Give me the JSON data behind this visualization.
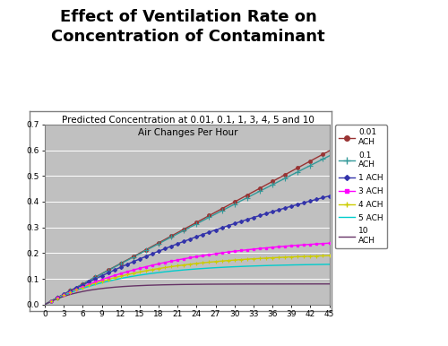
{
  "title": "Effect of Ventilation Rate on\nConcentration of Contaminant",
  "subtitle": "Predicted Concentration at 0.01, 0.1, 1, 3, 4, 5 and 10\nAir Changes Per Hour",
  "title_fontsize": 13,
  "subtitle_fontsize": 7.5,
  "ach_values": [
    0.01,
    0.1,
    1,
    3,
    4,
    5,
    10
  ],
  "ach_labels": [
    "0.01\nACH",
    "0.1\nACH",
    "1 ACH",
    "3 ACH",
    "4 ACH",
    "5 ACH",
    "10\nACH"
  ],
  "line_colors": [
    "#993333",
    "#339999",
    "#3333AA",
    "#FF00FF",
    "#CCCC00",
    "#00CCCC",
    "#663366"
  ],
  "ylim": [
    0,
    0.7
  ],
  "xlim": [
    0,
    45
  ],
  "xticks": [
    0,
    3,
    6,
    9,
    12,
    15,
    18,
    21,
    24,
    27,
    30,
    33,
    36,
    39,
    42,
    45
  ],
  "yticks": [
    0,
    0.1,
    0.2,
    0.3,
    0.4,
    0.5,
    0.6,
    0.7
  ],
  "emission_rate": 0.8,
  "plot_bg_color": "#C0C0C0",
  "outer_bg_color": "#FFFFFF",
  "grid_color": "#FFFFFF",
  "border_color": "#808080"
}
